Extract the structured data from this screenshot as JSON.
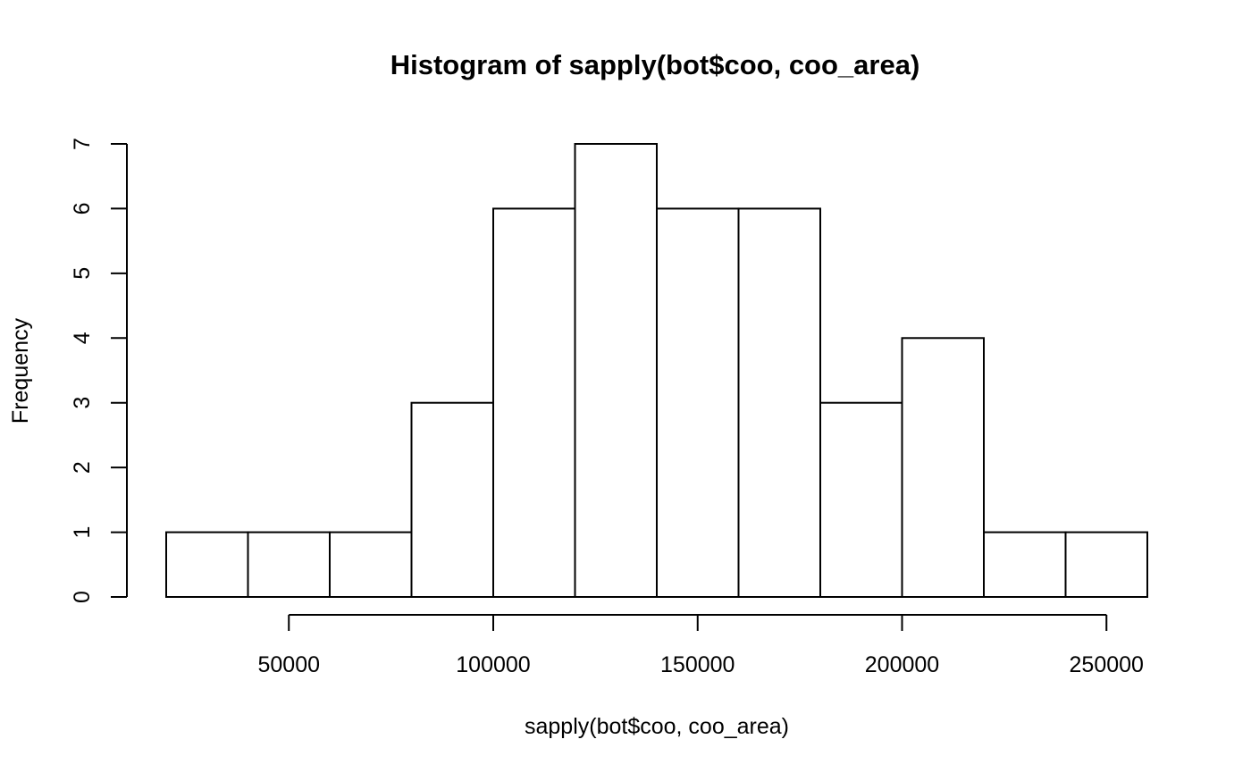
{
  "chart_data": {
    "type": "bar",
    "title": "Histogram of sapply(bot$coo, coo_area)",
    "xlabel": "sapply(bot$coo, coo_area)",
    "ylabel": "Frequency",
    "bins": [
      {
        "start": 20000,
        "end": 40000,
        "count": 1
      },
      {
        "start": 40000,
        "end": 60000,
        "count": 1
      },
      {
        "start": 60000,
        "end": 80000,
        "count": 1
      },
      {
        "start": 80000,
        "end": 100000,
        "count": 3
      },
      {
        "start": 100000,
        "end": 120000,
        "count": 6
      },
      {
        "start": 120000,
        "end": 140000,
        "count": 7
      },
      {
        "start": 140000,
        "end": 160000,
        "count": 6
      },
      {
        "start": 160000,
        "end": 180000,
        "count": 6
      },
      {
        "start": 180000,
        "end": 200000,
        "count": 3
      },
      {
        "start": 200000,
        "end": 220000,
        "count": 4
      },
      {
        "start": 220000,
        "end": 240000,
        "count": 1
      },
      {
        "start": 240000,
        "end": 260000,
        "count": 1
      }
    ],
    "xticks": [
      "50000",
      "100000",
      "150000",
      "200000",
      "250000"
    ],
    "yticks": [
      "0",
      "1",
      "2",
      "3",
      "4",
      "5",
      "6",
      "7"
    ],
    "xlim": [
      20000,
      260000
    ],
    "ylim": [
      0,
      7
    ],
    "grid": false,
    "colors": {
      "bar_fill": "#ffffff",
      "bar_stroke": "#000000"
    }
  }
}
